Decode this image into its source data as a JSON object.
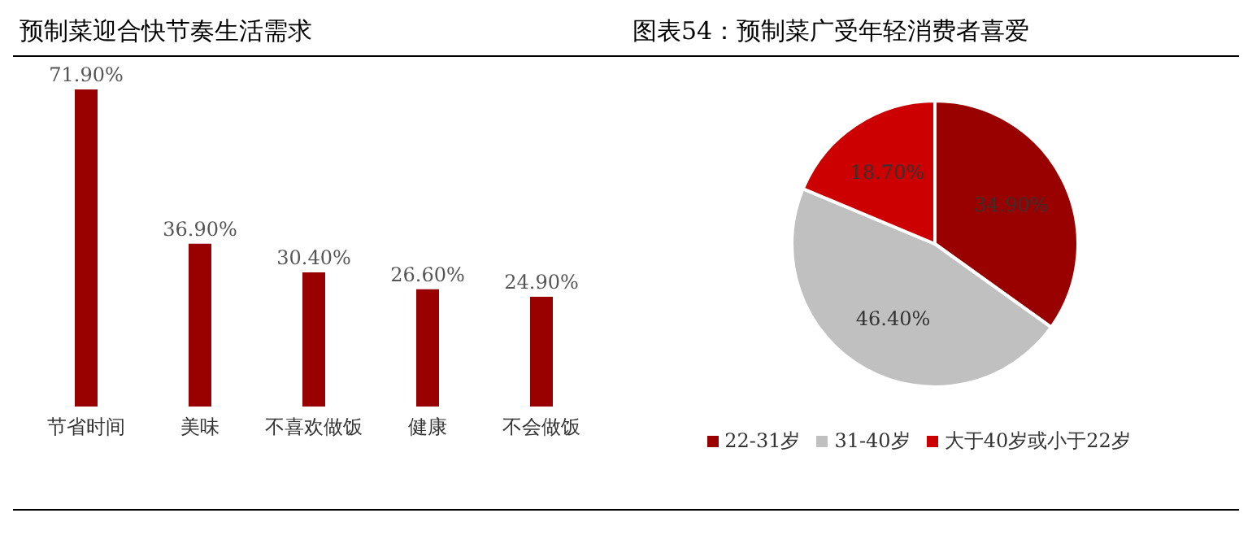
{
  "chart_data": [
    {
      "type": "bar",
      "title": "预制菜迎合快节奏生活需求",
      "categories": [
        "节省时间",
        "美味",
        "不喜欢做饭",
        "健康",
        "不会做饭"
      ],
      "values": [
        71.9,
        36.9,
        30.4,
        26.6,
        24.9
      ],
      "color": "#990000",
      "value_labels": [
        "71.90%",
        "36.90%",
        "30.40%",
        "26.60%",
        "24.90%"
      ],
      "tick_labels": "x"
    },
    {
      "type": "pie",
      "title": "图表54：预制菜广受年轻消费者喜爱",
      "categories": [
        "22-31岁",
        "31-40岁",
        "大于40岁或小于22岁"
      ],
      "values": [
        34.9,
        46.4,
        18.7
      ],
      "colors": [
        "#990000",
        "#c0c0c0",
        "#cc0000"
      ],
      "value_labels": [
        "34.90%",
        "46.40%",
        "18.70%"
      ],
      "legend": "bottom"
    }
  ]
}
